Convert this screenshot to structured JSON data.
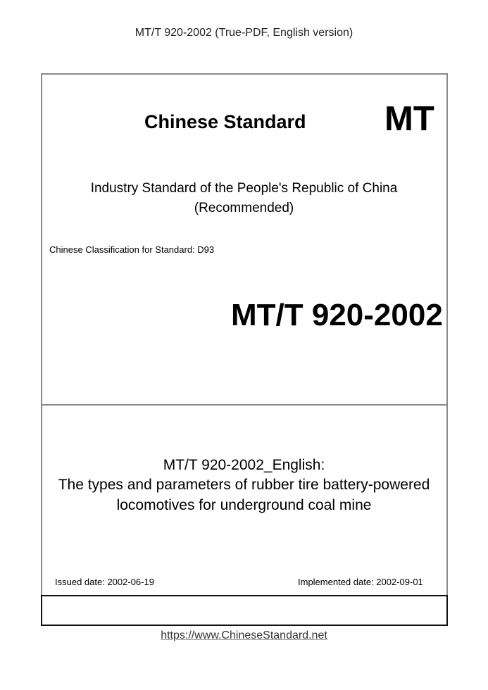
{
  "header": {
    "text": "MT/T 920-2002 (True-PDF, English version)"
  },
  "cover": {
    "brand": "Chinese Standard",
    "prefix": "MT",
    "issuer": "Industry Standard of the People's Republic of China",
    "status": "(Recommended)",
    "classification": "Chinese Classification for Standard: D93",
    "code": "MT/T 920-2002",
    "title_lines": [
      "MT/T 920-2002_English:",
      "The types and parameters of rubber tire battery-powered",
      "locomotives for underground coal mine"
    ],
    "issued": "Issued date: 2002-06-19",
    "implemented": "Implemented date: 2002-09-01"
  },
  "footer": {
    "url": "https://www.ChineseStandard.net"
  }
}
